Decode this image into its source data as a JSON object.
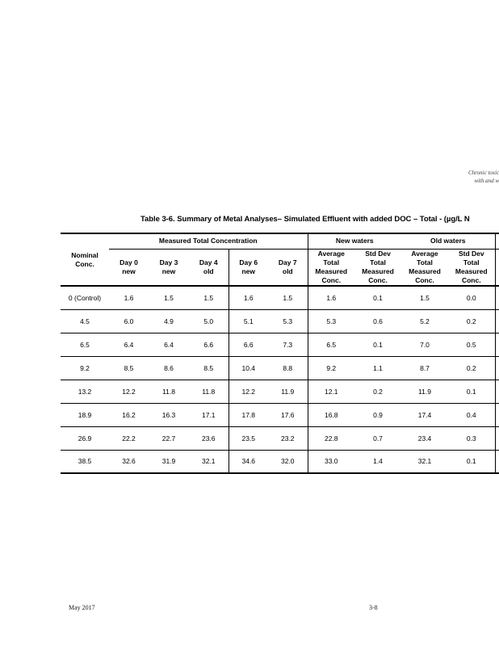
{
  "page": {
    "header_right_lines": [
      "Chronic toxici",
      "with and wi"
    ],
    "title": "Table 3-6. Summary of Metal Analyses– Simulated Effluent with added DOC – Total - (µg/L N",
    "footer": {
      "date": "May 2017",
      "page_number": "3-8"
    }
  },
  "table": {
    "corner": {
      "lines": [
        "Nominal",
        "Conc."
      ]
    },
    "groups": {
      "measured": "Measured Total Concentration",
      "new_waters": "New waters",
      "old_waters": "Old waters"
    },
    "day_columns": [
      {
        "top": "Day 0",
        "bottom": "new"
      },
      {
        "top": "Day 3",
        "bottom": "new"
      },
      {
        "top": "Day 4",
        "bottom": "old"
      },
      {
        "top": "Day 6",
        "bottom": "new"
      },
      {
        "top": "Day 7",
        "bottom": "old"
      }
    ],
    "stat_columns": {
      "avg": [
        "Average",
        "Total",
        "Measured",
        "Conc."
      ],
      "std": [
        "Std Dev",
        "Total",
        "Measured",
        "Conc."
      ]
    },
    "rows": [
      {
        "nominal": "0 (Control)",
        "values": [
          "1.6",
          "1.5",
          "1.5",
          "1.6",
          "1.5",
          "1.6",
          "0.1",
          "1.5",
          "0.0"
        ]
      },
      {
        "nominal": "4.5",
        "values": [
          "6.0",
          "4.9",
          "5.0",
          "5.1",
          "5.3",
          "5.3",
          "0.6",
          "5.2",
          "0.2"
        ]
      },
      {
        "nominal": "6.5",
        "values": [
          "6.4",
          "6.4",
          "6.6",
          "6.6",
          "7.3",
          "6.5",
          "0.1",
          "7.0",
          "0.5"
        ]
      },
      {
        "nominal": "9.2",
        "values": [
          "8.5",
          "8.6",
          "8.5",
          "10.4",
          "8.8",
          "9.2",
          "1.1",
          "8.7",
          "0.2"
        ]
      },
      {
        "nominal": "13.2",
        "values": [
          "12.2",
          "11.8",
          "11.8",
          "12.2",
          "11.9",
          "12.1",
          "0.2",
          "11.9",
          "0.1"
        ]
      },
      {
        "nominal": "18.9",
        "values": [
          "16.2",
          "16.3",
          "17.1",
          "17.8",
          "17.6",
          "16.8",
          "0.9",
          "17.4",
          "0.4"
        ]
      },
      {
        "nominal": "26.9",
        "values": [
          "22.2",
          "22.7",
          "23.6",
          "23.5",
          "23.2",
          "22.8",
          "0.7",
          "23.4",
          "0.3"
        ]
      },
      {
        "nominal": "38.5",
        "values": [
          "32.6",
          "31.9",
          "32.1",
          "34.6",
          "32.0",
          "33.0",
          "1.4",
          "32.1",
          "0.1"
        ]
      }
    ]
  }
}
